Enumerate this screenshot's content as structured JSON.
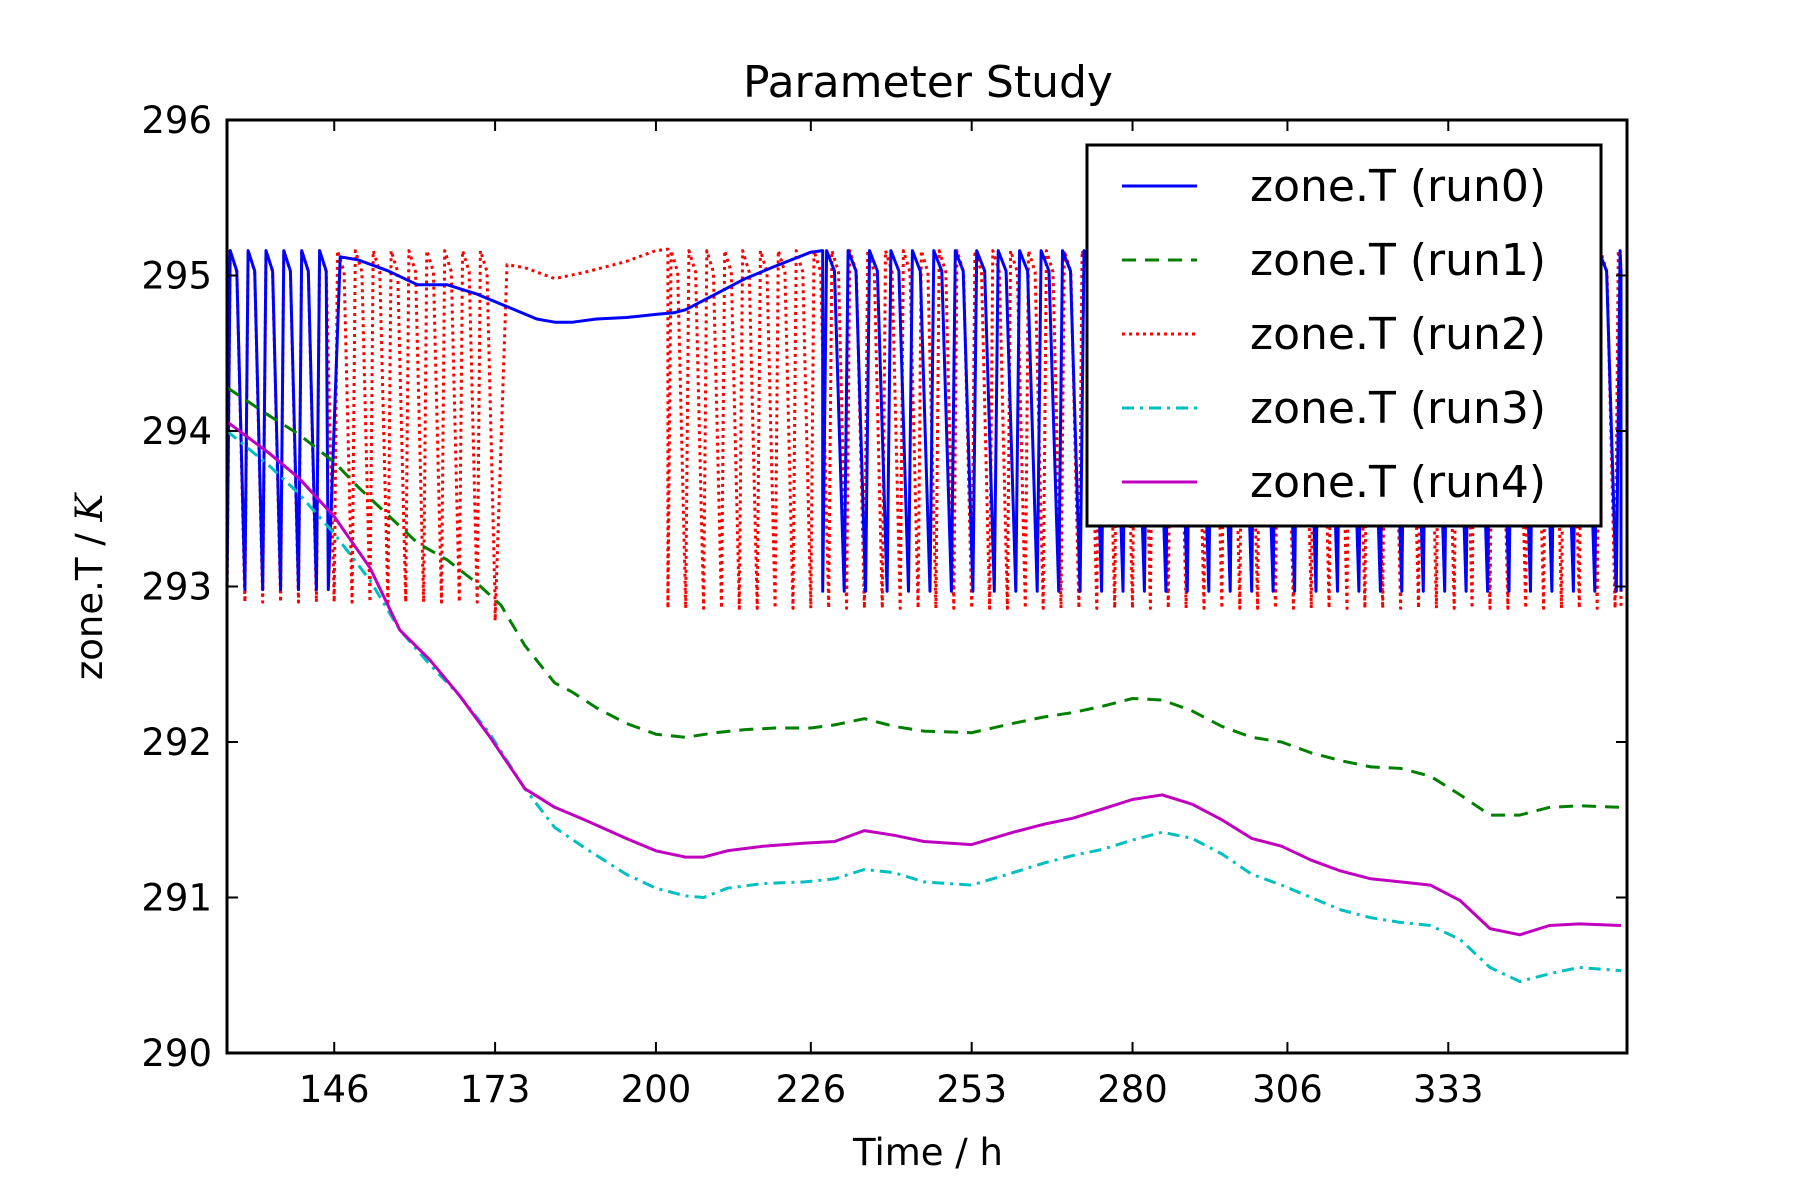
{
  "chart_data": {
    "type": "line",
    "title": "Parameter Study",
    "xlabel": "Time / h",
    "ylabel_prefix": "zone.T / ",
    "ylabel_unit": "K",
    "xlim": [
      128,
      363
    ],
    "ylim": [
      290,
      296
    ],
    "xticks": [
      146,
      173,
      200,
      226,
      253,
      280,
      306,
      333
    ],
    "yticks": [
      290,
      291,
      292,
      293,
      294,
      295,
      296
    ],
    "grid": false,
    "legend_position": "top-right",
    "series": [
      {
        "name": "zone.T (run0)",
        "color": "#0000ff",
        "style": "solid",
        "segments": [
          {
            "kind": "oscillate",
            "x": [
              128,
              145
            ],
            "low": 292.98,
            "high": 295.16,
            "period": 3.0
          },
          {
            "kind": "points",
            "x": [
              145,
              147,
              150,
              155,
              160,
              165,
              170,
              175,
              180,
              183,
              186,
              190,
              195,
              200,
              203,
              205,
              210,
              215,
              220,
              226,
              228
            ],
            "y": [
              292.98,
              295.12,
              295.1,
              295.03,
              294.94,
              294.94,
              294.88,
              294.8,
              294.72,
              294.7,
              294.7,
              294.72,
              294.73,
              294.75,
              294.76,
              294.78,
              294.88,
              294.98,
              295.06,
              295.15,
              295.16
            ]
          },
          {
            "kind": "oscillate",
            "x": [
              228,
              362
            ],
            "low": 292.97,
            "high": 295.16,
            "period": 3.6
          }
        ]
      },
      {
        "name": "zone.T (run1)",
        "color": "#007f00",
        "style": "dashed",
        "x": [
          128,
          135,
          140,
          146,
          150,
          155,
          160,
          165,
          170,
          174,
          178,
          183,
          186,
          190,
          195,
          200,
          205,
          210,
          215,
          220,
          226,
          230,
          235,
          240,
          245,
          253,
          260,
          265,
          270,
          275,
          280,
          285,
          290,
          295,
          300,
          305,
          310,
          315,
          320,
          325,
          330,
          335,
          340,
          345,
          350,
          355,
          362
        ],
        "y": [
          294.28,
          294.1,
          293.98,
          293.8,
          293.64,
          293.46,
          293.28,
          293.17,
          293.02,
          292.88,
          292.62,
          292.38,
          292.32,
          292.22,
          292.12,
          292.05,
          292.03,
          292.06,
          292.08,
          292.09,
          292.09,
          292.11,
          292.15,
          292.1,
          292.07,
          292.06,
          292.12,
          292.16,
          292.19,
          292.23,
          292.28,
          292.27,
          292.2,
          292.1,
          292.03,
          292.0,
          291.93,
          291.88,
          291.84,
          291.83,
          291.78,
          291.66,
          291.53,
          291.53,
          291.58,
          291.59,
          291.58
        ]
      },
      {
        "name": "zone.T (run2)",
        "color": "#ff0000",
        "style": "dotted",
        "segments": [
          {
            "kind": "oscillate",
            "x": [
              128,
              173
            ],
            "low": 292.9,
            "high": 295.16,
            "period": 3.0
          },
          {
            "kind": "points",
            "x": [
              173,
              175,
              178,
              183,
              188,
              195,
              200,
              202
            ],
            "y": [
              292.78,
              295.07,
              295.05,
              294.98,
              295.02,
              295.09,
              295.16,
              295.17
            ]
          },
          {
            "kind": "oscillate",
            "x": [
              202,
              362
            ],
            "low": 292.86,
            "high": 295.16,
            "period": 3.0
          }
        ]
      },
      {
        "name": "zone.T (run3)",
        "color": "#00bfbf",
        "style": "dashdot",
        "x": [
          128,
          135,
          140,
          146,
          152,
          157,
          162,
          167,
          172,
          178,
          183,
          188,
          195,
          200,
          205,
          208,
          212,
          218,
          225,
          230,
          235,
          240,
          245,
          253,
          260,
          265,
          270,
          275,
          280,
          285,
          290,
          295,
          300,
          305,
          310,
          315,
          320,
          325,
          330,
          335,
          340,
          345,
          350,
          355,
          362
        ],
        "y": [
          294.0,
          293.78,
          293.6,
          293.34,
          293.04,
          292.72,
          292.5,
          292.3,
          292.06,
          291.7,
          291.45,
          291.32,
          291.15,
          291.06,
          291.01,
          291.0,
          291.06,
          291.09,
          291.1,
          291.12,
          291.18,
          291.16,
          291.1,
          291.08,
          291.16,
          291.22,
          291.27,
          291.31,
          291.37,
          291.42,
          291.38,
          291.28,
          291.15,
          291.08,
          291.0,
          290.92,
          290.87,
          290.84,
          290.82,
          290.73,
          290.55,
          290.46,
          290.51,
          290.55,
          290.53
        ]
      },
      {
        "name": "zone.T (run4)",
        "color": "#bf00bf",
        "style": "solid",
        "x": [
          128,
          135,
          140,
          146,
          152,
          157,
          162,
          167,
          172,
          178,
          183,
          188,
          195,
          200,
          205,
          208,
          212,
          218,
          225,
          230,
          235,
          240,
          245,
          253,
          260,
          265,
          270,
          275,
          280,
          285,
          290,
          295,
          300,
          305,
          310,
          315,
          320,
          325,
          330,
          335,
          340,
          345,
          350,
          355,
          362
        ],
        "y": [
          294.06,
          293.86,
          293.7,
          293.45,
          293.12,
          292.72,
          292.53,
          292.3,
          292.04,
          291.7,
          291.58,
          291.5,
          291.38,
          291.3,
          291.26,
          291.26,
          291.3,
          291.33,
          291.35,
          291.36,
          291.43,
          291.4,
          291.36,
          291.34,
          291.42,
          291.47,
          291.51,
          291.57,
          291.63,
          291.66,
          291.6,
          291.5,
          291.38,
          291.33,
          291.24,
          291.17,
          291.12,
          291.1,
          291.08,
          290.98,
          290.8,
          290.76,
          290.82,
          290.83,
          290.82
        ]
      }
    ]
  }
}
